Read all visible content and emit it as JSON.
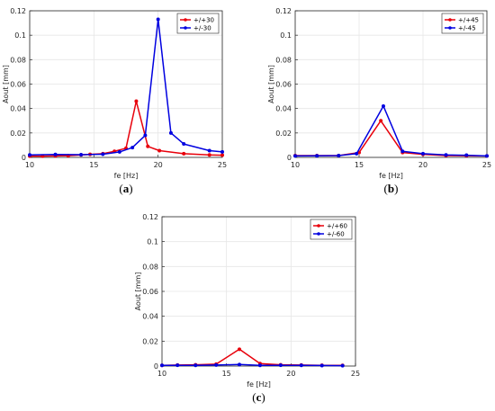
{
  "chart_data": [
    {
      "type": "line",
      "caption": "(a)",
      "caption_letter": "a",
      "xlabel": "fe [Hz]",
      "ylabel": "Aout [mm]",
      "xlim": [
        10,
        25
      ],
      "ylim": [
        0,
        0.12
      ],
      "xticks": [
        "10",
        "15",
        "20",
        "25"
      ],
      "yticks": [
        "0",
        "0.02",
        "0.04",
        "0.06",
        "0.08",
        "0.1",
        "0.12"
      ],
      "grid": true,
      "legend_position": "top-right",
      "series": [
        {
          "name": "+/+30",
          "color": "#e8000b",
          "x": [
            10,
            11,
            12,
            13,
            14,
            14.7,
            15.7,
            16.6,
            17.5,
            18.3,
            19.2,
            20.1,
            22,
            24,
            25
          ],
          "y": [
            0.001,
            0.001,
            0.0012,
            0.0014,
            0.002,
            0.0025,
            0.003,
            0.005,
            0.0075,
            0.046,
            0.009,
            0.0055,
            0.003,
            0.002,
            0.0018
          ]
        },
        {
          "name": "+/-30",
          "color": "#0000e0",
          "x": [
            10,
            12,
            14,
            15.7,
            17,
            18,
            19,
            20,
            21,
            22,
            24,
            25
          ],
          "y": [
            0.002,
            0.0024,
            0.0022,
            0.0026,
            0.0045,
            0.008,
            0.018,
            0.113,
            0.02,
            0.011,
            0.0055,
            0.0045
          ]
        }
      ]
    },
    {
      "type": "line",
      "caption": "(b)",
      "caption_letter": "b",
      "xlabel": "fe [Hz]",
      "ylabel": "Aout [mm]",
      "xlim": [
        10,
        25
      ],
      "ylim": [
        0,
        0.12
      ],
      "xticks": [
        "10",
        "15",
        "20",
        "25"
      ],
      "yticks": [
        "0",
        "0.02",
        "0.04",
        "0.06",
        "0.08",
        "0.1",
        "0.12"
      ],
      "grid": true,
      "legend_position": "top-right",
      "series": [
        {
          "name": "+/+45",
          "color": "#e8000b",
          "x": [
            10,
            11.7,
            13.4,
            15,
            16.7,
            18.4,
            20,
            21.8,
            23.4,
            25
          ],
          "y": [
            0.0015,
            0.0015,
            0.0015,
            0.004,
            0.03,
            0.004,
            0.0025,
            0.0015,
            0.0013,
            0.0012
          ]
        },
        {
          "name": "+/-45",
          "color": "#0000e0",
          "x": [
            10,
            11.7,
            13.4,
            14.8,
            16.9,
            18.4,
            20,
            21.8,
            23.4,
            25
          ],
          "y": [
            0.0012,
            0.0013,
            0.0015,
            0.003,
            0.042,
            0.005,
            0.003,
            0.002,
            0.0018,
            0.0012
          ]
        }
      ]
    },
    {
      "type": "line",
      "caption": "(c)",
      "caption_letter": "c",
      "xlabel": "fe [Hz]",
      "ylabel": "Aout [mm]",
      "xlim": [
        10,
        25
      ],
      "ylim": [
        0,
        0.12
      ],
      "xticks": [
        "10",
        "15",
        "20",
        "25"
      ],
      "yticks": [
        "0",
        "0.02",
        "0.04",
        "0.06",
        "0.08",
        "0.1",
        "0.12"
      ],
      "grid": true,
      "legend_position": "top-right",
      "series": [
        {
          "name": "+/+60",
          "color": "#e8000b",
          "x": [
            10,
            11.2,
            12.6,
            14.2,
            16,
            17.6,
            19.2,
            20.8,
            22.4,
            24
          ],
          "y": [
            0.0005,
            0.0008,
            0.001,
            0.0015,
            0.0135,
            0.002,
            0.001,
            0.0008,
            0.0006,
            0.0005
          ]
        },
        {
          "name": "+/-60",
          "color": "#0000e0",
          "x": [
            10,
            11.2,
            12.6,
            14.2,
            16,
            17.6,
            19.2,
            20.8,
            22.4,
            24
          ],
          "y": [
            0.0005,
            0.0006,
            0.0005,
            0.0008,
            0.0012,
            0.0005,
            0.0006,
            0.0005,
            0.0004,
            0.0003
          ]
        }
      ]
    }
  ]
}
